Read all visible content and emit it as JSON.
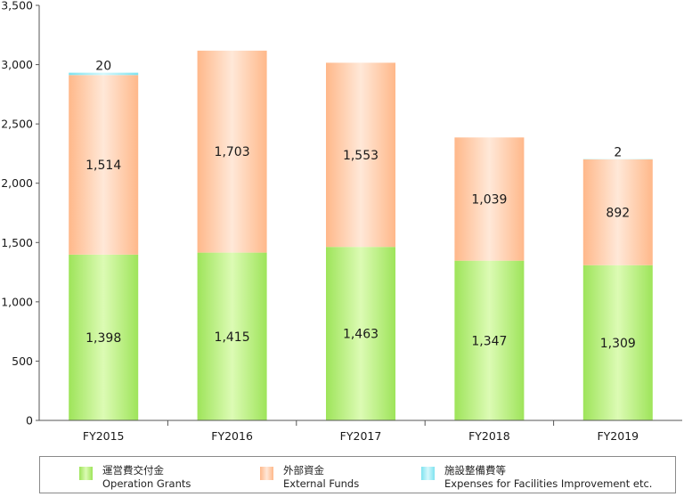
{
  "chart_data": {
    "type": "bar",
    "stacked": true,
    "categories": [
      "FY2015",
      "FY2016",
      "FY2017",
      "FY2018",
      "FY2019"
    ],
    "series": [
      {
        "name": "運営費交付金 Operation Grants",
        "values": [
          1398,
          1415,
          1463,
          1347,
          1309
        ],
        "labels": [
          "1,398",
          "1,415",
          "1,463",
          "1,347",
          "1,309"
        ],
        "color": "#a8ec68"
      },
      {
        "name": "外部資金 External Funds",
        "values": [
          1514,
          1703,
          1553,
          1039,
          892
        ],
        "labels": [
          "1,514",
          "1,703",
          "1,553",
          "1,039",
          "892"
        ],
        "color": "#ffc29a"
      },
      {
        "name": "施設整備費等 Expenses for Facilities Improvement etc.",
        "values": [
          20,
          0,
          0,
          0,
          2
        ],
        "labels": [
          "20",
          "",
          "",
          "",
          "2"
        ],
        "color": "#8ee9f4"
      }
    ],
    "yticks": [
      "0",
      "500",
      "1,000",
      "1,500",
      "2,000",
      "2,500",
      "3,000",
      "3,500"
    ],
    "ylim": [
      0,
      3500
    ],
    "grid": false,
    "legend_position": "bottom"
  },
  "legend": [
    {
      "jp": "運営費交付金",
      "en": "Operation Grants"
    },
    {
      "jp": "外部資金",
      "en": "External Funds"
    },
    {
      "jp": "施設整備費等",
      "en": "Expenses for Facilities Improvement etc."
    }
  ]
}
